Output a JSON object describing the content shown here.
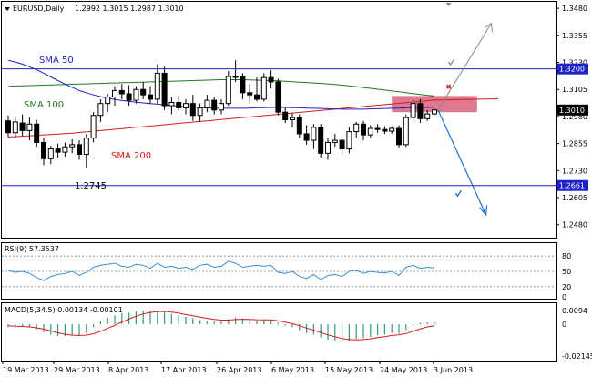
{
  "header": {
    "symbol_title": "EURUSD,Daily",
    "ohlc": "1.2992 1.3015 1.2987 1.3010"
  },
  "chart_data": [
    {
      "type": "candlestick",
      "title": "EURUSD,Daily",
      "ylim": [
        1.242,
        1.351
      ],
      "y_ticks": [
        "1.3480",
        "1.3355",
        "1.3230",
        "1.3105",
        "1.2980",
        "1.2855",
        "1.2730",
        "1.2605",
        "1.2480"
      ],
      "price_labels": [
        {
          "value": 1.32,
          "label": "1.3200",
          "color": "#1e22c8"
        },
        {
          "value": 1.301,
          "label": "1.3010",
          "color": "#000000"
        },
        {
          "value": 1.2661,
          "label": "1.2661",
          "color": "#1e22c8"
        }
      ],
      "x_labels": [
        "19 Mar 2013",
        "29 Mar 2013",
        "8 Apr 2013",
        "17 Apr 2013",
        "26 Apr 2013",
        "6 May 2013",
        "15 May 2013",
        "24 May 2013",
        "3 Jun 2013"
      ],
      "annotations": [
        {
          "text": "SMA 50",
          "color": "#1e22c8"
        },
        {
          "text": "SMA 100",
          "color": "#1f7a1f"
        },
        {
          "text": "SMA 200",
          "color": "#d81b1b"
        },
        {
          "text": "1.2745",
          "color": "#000000"
        }
      ],
      "horizontal_levels": [
        {
          "value": 1.32,
          "color": "#1e22c8"
        },
        {
          "value": 1.2661,
          "color": "#1e22c8"
        }
      ],
      "candles": [
        {
          "o": 1.296,
          "h": 1.2985,
          "l": 1.2885,
          "c": 1.2905
        },
        {
          "o": 1.2905,
          "h": 1.2975,
          "l": 1.288,
          "c": 1.2955
        },
        {
          "o": 1.295,
          "h": 1.299,
          "l": 1.289,
          "c": 1.2915
        },
        {
          "o": 1.2915,
          "h": 1.2975,
          "l": 1.287,
          "c": 1.2945
        },
        {
          "o": 1.2945,
          "h": 1.2965,
          "l": 1.284,
          "c": 1.286
        },
        {
          "o": 1.286,
          "h": 1.288,
          "l": 1.2755,
          "c": 1.2785
        },
        {
          "o": 1.2785,
          "h": 1.2845,
          "l": 1.276,
          "c": 1.283
        },
        {
          "o": 1.283,
          "h": 1.2855,
          "l": 1.279,
          "c": 1.2815
        },
        {
          "o": 1.2815,
          "h": 1.286,
          "l": 1.2795,
          "c": 1.284
        },
        {
          "o": 1.284,
          "h": 1.2875,
          "l": 1.281,
          "c": 1.285
        },
        {
          "o": 1.285,
          "h": 1.287,
          "l": 1.278,
          "c": 1.2805
        },
        {
          "o": 1.2805,
          "h": 1.29,
          "l": 1.2745,
          "c": 1.288
        },
        {
          "o": 1.288,
          "h": 1.3,
          "l": 1.286,
          "c": 1.2985
        },
        {
          "o": 1.2985,
          "h": 1.306,
          "l": 1.2955,
          "c": 1.304
        },
        {
          "o": 1.304,
          "h": 1.3085,
          "l": 1.3,
          "c": 1.307
        },
        {
          "o": 1.307,
          "h": 1.312,
          "l": 1.303,
          "c": 1.31
        },
        {
          "o": 1.31,
          "h": 1.313,
          "l": 1.306,
          "c": 1.3085
        },
        {
          "o": 1.3085,
          "h": 1.3125,
          "l": 1.303,
          "c": 1.3055
        },
        {
          "o": 1.3055,
          "h": 1.312,
          "l": 1.304,
          "c": 1.3105
        },
        {
          "o": 1.3105,
          "h": 1.314,
          "l": 1.306,
          "c": 1.308
        },
        {
          "o": 1.308,
          "h": 1.312,
          "l": 1.304,
          "c": 1.306
        },
        {
          "o": 1.306,
          "h": 1.322,
          "l": 1.304,
          "c": 1.318
        },
        {
          "o": 1.318,
          "h": 1.321,
          "l": 1.301,
          "c": 1.303
        },
        {
          "o": 1.303,
          "h": 1.307,
          "l": 1.299,
          "c": 1.3045
        },
        {
          "o": 1.3045,
          "h": 1.3075,
          "l": 1.3005,
          "c": 1.302
        },
        {
          "o": 1.302,
          "h": 1.306,
          "l": 1.299,
          "c": 1.304
        },
        {
          "o": 1.304,
          "h": 1.308,
          "l": 1.296,
          "c": 1.2985
        },
        {
          "o": 1.2985,
          "h": 1.304,
          "l": 1.2955,
          "c": 1.302
        },
        {
          "o": 1.302,
          "h": 1.308,
          "l": 1.3,
          "c": 1.3055
        },
        {
          "o": 1.3055,
          "h": 1.307,
          "l": 1.299,
          "c": 1.301
        },
        {
          "o": 1.301,
          "h": 1.306,
          "l": 1.299,
          "c": 1.304
        },
        {
          "o": 1.304,
          "h": 1.319,
          "l": 1.303,
          "c": 1.3165
        },
        {
          "o": 1.3165,
          "h": 1.324,
          "l": 1.314,
          "c": 1.3165
        },
        {
          "o": 1.3165,
          "h": 1.318,
          "l": 1.306,
          "c": 1.309
        },
        {
          "o": 1.309,
          "h": 1.313,
          "l": 1.304,
          "c": 1.308
        },
        {
          "o": 1.308,
          "h": 1.316,
          "l": 1.305,
          "c": 1.306
        },
        {
          "o": 1.306,
          "h": 1.318,
          "l": 1.305,
          "c": 1.316
        },
        {
          "o": 1.316,
          "h": 1.3195,
          "l": 1.311,
          "c": 1.314
        },
        {
          "o": 1.314,
          "h": 1.3155,
          "l": 1.2985,
          "c": 1.3
        },
        {
          "o": 1.3,
          "h": 1.302,
          "l": 1.295,
          "c": 1.2965
        },
        {
          "o": 1.2965,
          "h": 1.2995,
          "l": 1.293,
          "c": 1.2975
        },
        {
          "o": 1.2975,
          "h": 1.299,
          "l": 1.288,
          "c": 1.29
        },
        {
          "o": 1.29,
          "h": 1.294,
          "l": 1.285,
          "c": 1.287
        },
        {
          "o": 1.287,
          "h": 1.2945,
          "l": 1.283,
          "c": 1.293
        },
        {
          "o": 1.293,
          "h": 1.2945,
          "l": 1.279,
          "c": 1.281
        },
        {
          "o": 1.281,
          "h": 1.288,
          "l": 1.278,
          "c": 1.286
        },
        {
          "o": 1.286,
          "h": 1.29,
          "l": 1.284,
          "c": 1.287
        },
        {
          "o": 1.287,
          "h": 1.2885,
          "l": 1.28,
          "c": 1.283
        },
        {
          "o": 1.283,
          "h": 1.293,
          "l": 1.281,
          "c": 1.291
        },
        {
          "o": 1.291,
          "h": 1.2955,
          "l": 1.288,
          "c": 1.2945
        },
        {
          "o": 1.2945,
          "h": 1.296,
          "l": 1.287,
          "c": 1.2895
        },
        {
          "o": 1.2895,
          "h": 1.294,
          "l": 1.288,
          "c": 1.2925
        },
        {
          "o": 1.2925,
          "h": 1.2945,
          "l": 1.2905,
          "c": 1.292
        },
        {
          "o": 1.292,
          "h": 1.2935,
          "l": 1.29,
          "c": 1.2912
        },
        {
          "o": 1.2912,
          "h": 1.2935,
          "l": 1.29,
          "c": 1.2925
        },
        {
          "o": 1.2925,
          "h": 1.294,
          "l": 1.2835,
          "c": 1.285
        },
        {
          "o": 1.285,
          "h": 1.299,
          "l": 1.284,
          "c": 1.2975
        },
        {
          "o": 1.2975,
          "h": 1.306,
          "l": 1.296,
          "c": 1.304
        },
        {
          "o": 1.304,
          "h": 1.306,
          "l": 1.295,
          "c": 1.297
        },
        {
          "o": 1.297,
          "h": 1.301,
          "l": 1.296,
          "c": 1.2992
        },
        {
          "o": 1.2992,
          "h": 1.3015,
          "l": 1.2987,
          "c": 1.301
        }
      ]
    },
    {
      "type": "line",
      "title": "RSI(9) 57.3537",
      "ylim": [
        0,
        100
      ],
      "y_ticks": [
        "80",
        "50",
        "20",
        "0"
      ],
      "levels": [
        80,
        50,
        20
      ],
      "values": [
        52,
        48,
        50,
        46,
        38,
        32,
        40,
        44,
        46,
        50,
        42,
        48,
        58,
        62,
        64,
        66,
        60,
        58,
        64,
        62,
        56,
        66,
        58,
        60,
        56,
        58,
        54,
        62,
        64,
        58,
        60,
        70,
        66,
        58,
        60,
        62,
        60,
        62,
        48,
        46,
        50,
        40,
        36,
        44,
        34,
        42,
        44,
        40,
        50,
        52,
        46,
        50,
        48,
        47,
        50,
        42,
        58,
        62,
        56,
        58,
        57
      ]
    },
    {
      "type": "histogram",
      "title": "MACD(5,34,5) 0.00134 -0.00101",
      "ylim": [
        -0.024,
        0.013
      ],
      "y_ticks": [
        "0.0094",
        "0",
        "-0.02145"
      ],
      "macd": [
        -0.002,
        -0.0022,
        -0.0018,
        -0.002,
        -0.0035,
        -0.0055,
        -0.007,
        -0.008,
        -0.008,
        -0.0074,
        -0.008,
        -0.006,
        -0.002,
        0.002,
        0.0045,
        0.006,
        0.0075,
        0.008,
        0.0088,
        0.0092,
        0.009,
        0.0092,
        0.0082,
        0.007,
        0.006,
        0.005,
        0.0042,
        0.003,
        0.0025,
        0.002,
        0.002,
        0.0035,
        0.0045,
        0.004,
        0.003,
        0.0025,
        0.0028,
        0.003,
        0.001,
        -0.001,
        -0.002,
        -0.004,
        -0.006,
        -0.007,
        -0.009,
        -0.0105,
        -0.011,
        -0.012,
        -0.0115,
        -0.01,
        -0.0095,
        -0.0085,
        -0.0075,
        -0.0068,
        -0.006,
        -0.0065,
        -0.004,
        -0.001,
        0.001,
        0.0012,
        0.0013
      ],
      "signal": [
        -0.001,
        -0.0013,
        -0.0015,
        -0.0018,
        -0.0024,
        -0.0033,
        -0.0045,
        -0.0058,
        -0.0068,
        -0.0074,
        -0.0076,
        -0.0074,
        -0.0064,
        -0.0048,
        -0.0028,
        -0.0008,
        0.0015,
        0.0035,
        0.0055,
        0.007,
        0.008,
        0.0086,
        0.0087,
        0.0082,
        0.0075,
        0.0066,
        0.0057,
        0.0048,
        0.004,
        0.0033,
        0.0028,
        0.0028,
        0.0032,
        0.0034,
        0.0033,
        0.0031,
        0.003,
        0.003,
        0.0024,
        0.0014,
        0.0004,
        -0.001,
        -0.0026,
        -0.004,
        -0.0056,
        -0.0072,
        -0.0085,
        -0.0097,
        -0.0104,
        -0.0106,
        -0.0104,
        -0.0099,
        -0.0091,
        -0.0084,
        -0.0076,
        -0.0072,
        -0.0063,
        -0.0048,
        -0.0031,
        -0.0018,
        -0.001
      ]
    }
  ],
  "sma_lines": {
    "sma50": [
      1.324,
      1.3232,
      1.3222,
      1.321,
      1.3196,
      1.318,
      1.3163,
      1.3146,
      1.313,
      1.3115,
      1.31,
      1.309,
      1.308,
      1.3072,
      1.3065,
      1.3059,
      1.3054,
      1.305,
      1.3046,
      1.3043,
      1.304,
      1.3037,
      1.3034,
      1.3031,
      1.3028,
      1.3026,
      1.3024,
      1.3022,
      1.302,
      1.3019,
      1.3018,
      1.3018,
      1.3018,
      1.3018,
      1.3019,
      1.302,
      1.3021,
      1.3022,
      1.3022,
      1.3022,
      1.3021,
      1.302,
      1.3019,
      1.3018,
      1.3017,
      1.3016,
      1.3015,
      1.3014,
      1.3014,
      1.3014,
      1.3014,
      1.3015,
      1.3016,
      1.3017,
      1.3018,
      1.3019,
      1.302,
      1.3021,
      1.3022,
      1.3022,
      1.3023
    ],
    "sma100": [
      1.312,
      1.3121,
      1.3122,
      1.3123,
      1.3124,
      1.3125,
      1.3126,
      1.3127,
      1.3128,
      1.3129,
      1.313,
      1.3131,
      1.3132,
      1.3133,
      1.3134,
      1.3135,
      1.3136,
      1.3137,
      1.3138,
      1.3139,
      1.314,
      1.3141,
      1.3142,
      1.3143,
      1.3144,
      1.3145,
      1.3146,
      1.3147,
      1.3148,
      1.3149,
      1.315,
      1.315,
      1.315,
      1.315,
      1.3149,
      1.3148,
      1.3147,
      1.3146,
      1.3145,
      1.3143,
      1.3141,
      1.3139,
      1.3137,
      1.3135,
      1.3133,
      1.3131,
      1.3128,
      1.3125,
      1.3122,
      1.3118,
      1.3114,
      1.311,
      1.3106,
      1.3102,
      1.3098,
      1.3094,
      1.309,
      1.3086,
      1.3082,
      1.3078,
      1.3075
    ],
    "sma200": [
      1.2885,
      1.2887,
      1.2889,
      1.2891,
      1.2893,
      1.2895,
      1.2897,
      1.2899,
      1.2901,
      1.2903,
      1.2906,
      1.2909,
      1.2912,
      1.2915,
      1.2918,
      1.2921,
      1.2924,
      1.2927,
      1.293,
      1.2933,
      1.2936,
      1.2939,
      1.2942,
      1.2945,
      1.2948,
      1.2951,
      1.2954,
      1.2957,
      1.296,
      1.2963,
      1.2966,
      1.2969,
      1.2972,
      1.2975,
      1.2978,
      1.2981,
      1.2984,
      1.2987,
      1.299,
      1.2993,
      1.2996,
      1.2999,
      1.3002,
      1.3005,
      1.3008,
      1.3011,
      1.3014,
      1.3017,
      1.302,
      1.3023,
      1.3026,
      1.3029,
      1.3032,
      1.3035,
      1.3038,
      1.3041,
      1.3044,
      1.3047,
      1.305,
      1.3053,
      1.3056
    ]
  },
  "colors": {
    "bull": "#ffffff",
    "bear": "#000000",
    "candle_outline": "#000000",
    "sma50": "#1e22c8",
    "sma100": "#1f7a1f",
    "sma200": "#d81b1b",
    "zone": "#d9607d",
    "rsi": "#3a8fd6",
    "macd_hist": "#2f9a7c",
    "macd_signal": "#d81b1b",
    "grid": "#888888",
    "arrow_up": "#888888",
    "arrow_down": "#1e6fd6"
  },
  "icons": {
    "dropdown": "triangle-down-icon",
    "cross": "x-mark-icon",
    "check_up": "checkmark-icon",
    "check_down": "checkmark-icon"
  }
}
